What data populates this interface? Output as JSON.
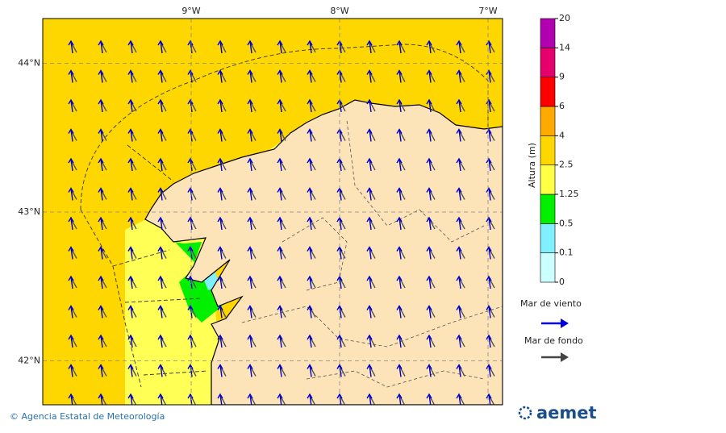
{
  "map": {
    "lon_ticks": [
      {
        "value": -9,
        "label": "9°W"
      },
      {
        "value": -8,
        "label": "8°W"
      },
      {
        "value": -7,
        "label": "7°W"
      }
    ],
    "lat_ticks": [
      {
        "value": 44,
        "label": "44°N"
      },
      {
        "value": 43,
        "label": "43°N"
      },
      {
        "value": 42,
        "label": "42°N"
      }
    ]
  },
  "colorbar": {
    "label": "Altura (m)",
    "ticks": [
      0,
      0.1,
      0.5,
      1.25,
      2.5,
      4,
      6,
      9,
      14,
      20
    ],
    "colors": [
      "#ccffff",
      "#80f0ff",
      "#00f000",
      "#ffff44",
      "#ffd700",
      "#ffaa00",
      "#ff0000",
      "#e6006e",
      "#b000b0"
    ]
  },
  "legend": [
    {
      "label": "Mar de viento",
      "color": "#0000dd"
    },
    {
      "label": "Mar de fondo",
      "color": "#444444"
    }
  ],
  "footer": {
    "credit": "© Agencia Estatal de Meteorología",
    "logo": "aemet"
  }
}
